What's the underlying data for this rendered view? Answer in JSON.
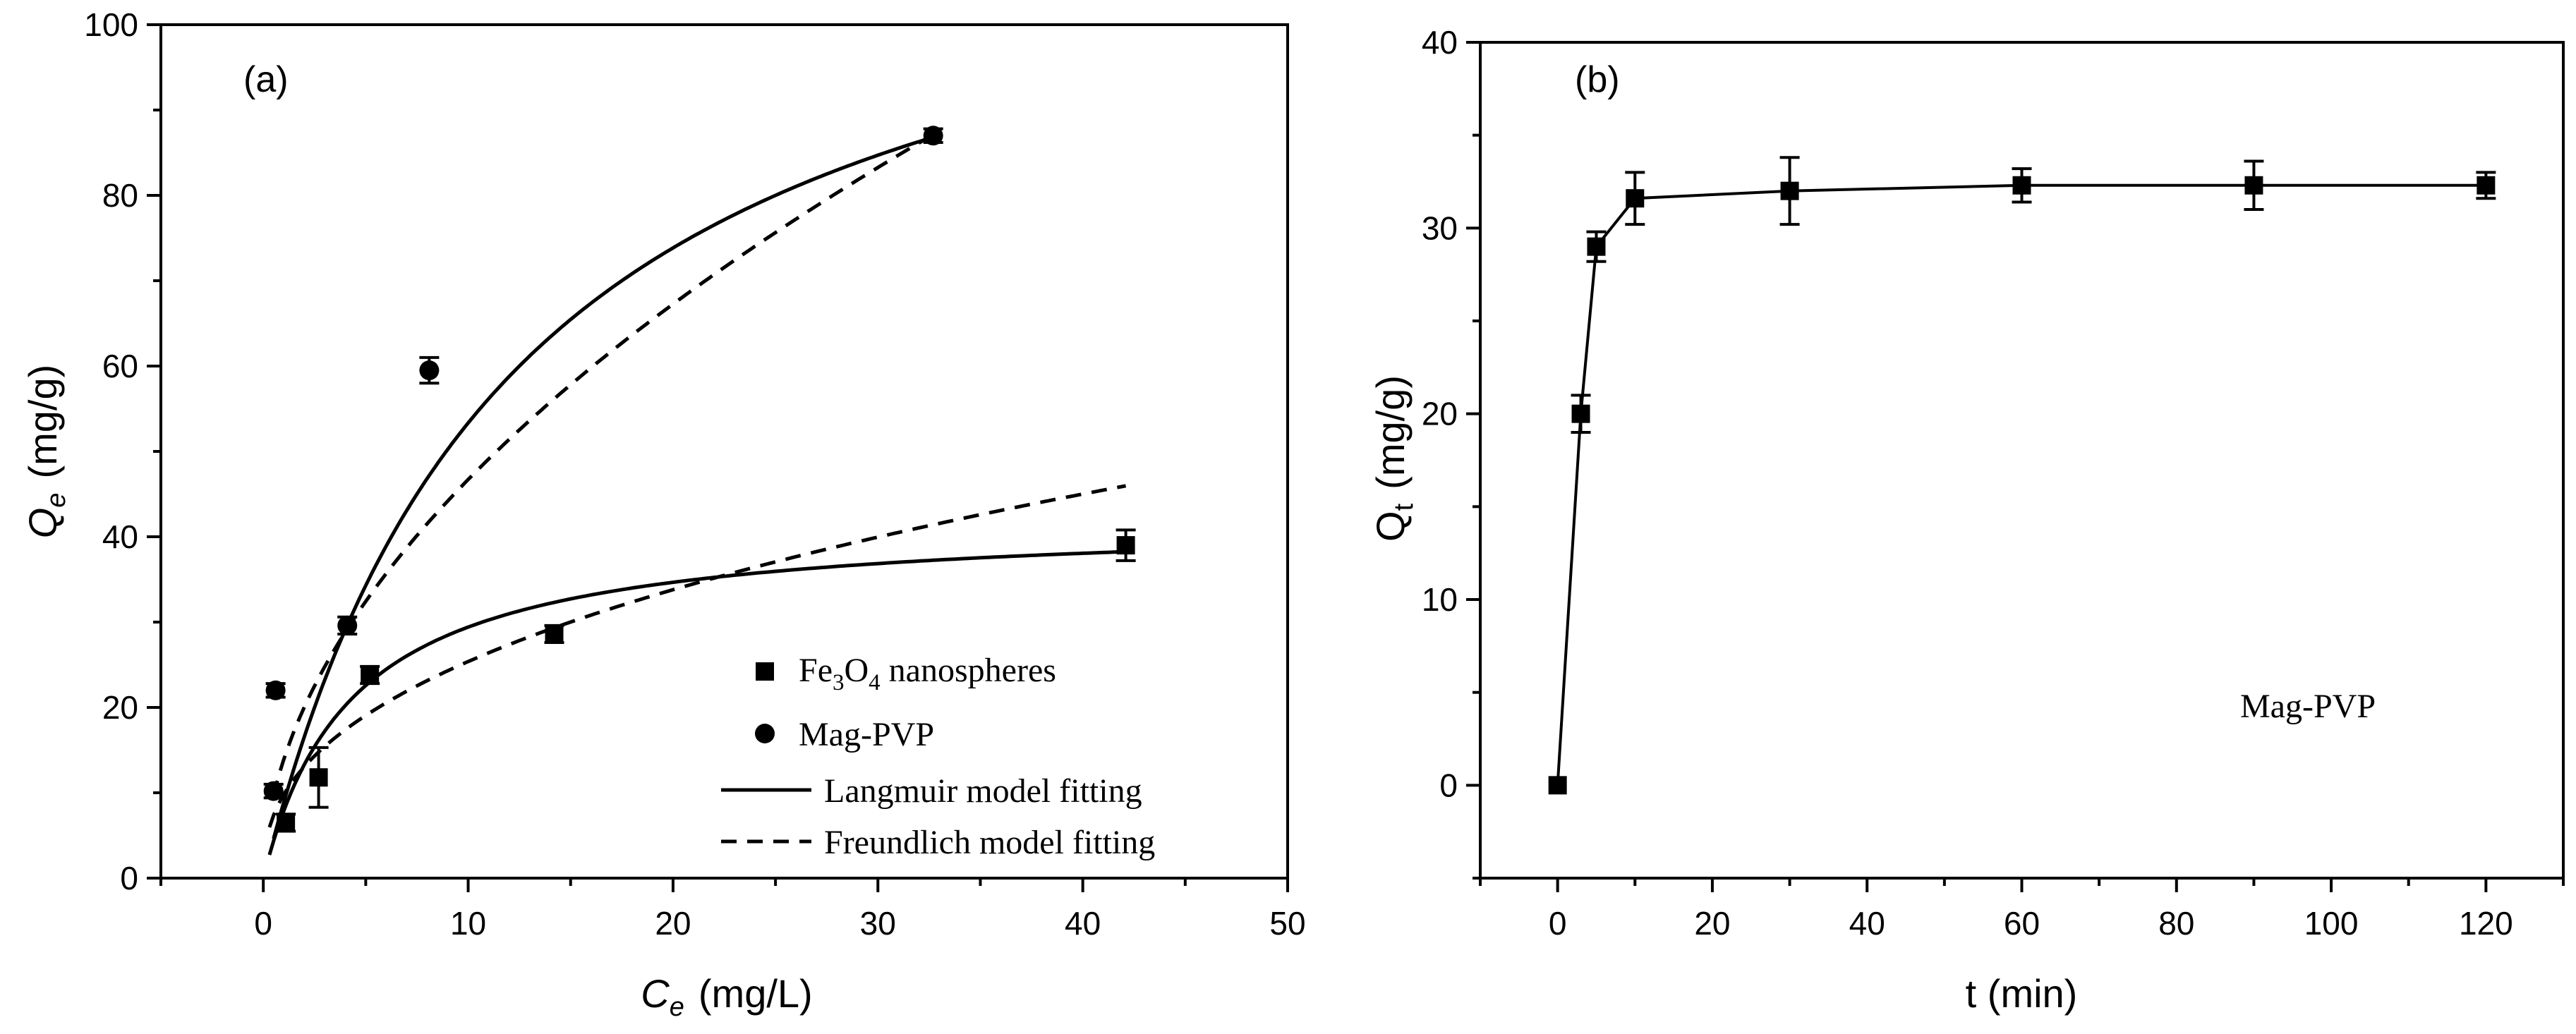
{
  "chart_data": [
    {
      "type": "scatter",
      "panel_label": "(a)",
      "xlabel": {
        "symbol": "C",
        "sub": "e",
        "unit": "(mg/L)"
      },
      "ylabel": {
        "symbol": "Q",
        "sub": "e",
        "unit": "(mg/g)"
      },
      "xlim": [
        -5,
        50
      ],
      "ylim": [
        0,
        100
      ],
      "xticks": [
        0,
        10,
        20,
        30,
        40,
        50
      ],
      "yticks": [
        0,
        20,
        40,
        60,
        80,
        100
      ],
      "xtick_labels": [
        "0",
        "10",
        "20",
        "30",
        "40",
        "50"
      ],
      "ytick_labels": [
        "0",
        "20",
        "40",
        "60",
        "80",
        "100"
      ],
      "legend_position": "bottom-right",
      "series": [
        {
          "name": "Fe3O4 nanospheres",
          "legend": {
            "parts": [
              "Fe",
              "3",
              "O",
              "4",
              " nanospheres"
            ]
          },
          "marker": "square",
          "points": [
            {
              "x": 1.1,
              "y": 6.5,
              "err": 1.0
            },
            {
              "x": 2.7,
              "y": 11.8,
              "err": 3.5
            },
            {
              "x": 5.2,
              "y": 23.8,
              "err": 1.0
            },
            {
              "x": 14.2,
              "y": 28.6,
              "err": 1.0
            },
            {
              "x": 42.1,
              "y": 39.0,
              "err": 1.8
            }
          ],
          "langmuir": {
            "qmax": 42.2,
            "KL": 0.23,
            "x_range": [
              0.3,
              42.1
            ]
          },
          "freundlich": {
            "KF": 9.8,
            "n": 2.42,
            "x_range": [
              0.3,
              42.1
            ]
          }
        },
        {
          "name": "Mag-PVP",
          "legend": {
            "text": "Mag-PVP"
          },
          "marker": "circle",
          "points": [
            {
              "x": 0.5,
              "y": 10.2,
              "err": 0.8
            },
            {
              "x": 0.6,
              "y": 22.0,
              "err": 0.8
            },
            {
              "x": 4.1,
              "y": 29.6,
              "err": 1.0
            },
            {
              "x": 8.1,
              "y": 59.5,
              "err": 1.5
            },
            {
              "x": 32.7,
              "y": 87.0,
              "err": 0.8
            }
          ],
          "langmuir": {
            "qmax": 120.0,
            "KL": 0.08,
            "x_range": [
              0.5,
              32.7
            ]
          },
          "freundlich": {
            "KF": 13.9,
            "n": 1.9,
            "x_range": [
              0.5,
              32.7
            ]
          }
        }
      ],
      "lines_legend": [
        {
          "name": "Langmuir model fitting",
          "style": "solid"
        },
        {
          "name": "Freundlich model fitting",
          "style": "dashed"
        }
      ]
    },
    {
      "type": "line",
      "panel_label": "(b)",
      "xlabel": {
        "text": "t (min)"
      },
      "ylabel": {
        "symbol": "Q",
        "sub": "t",
        "unit": "(mg/g)"
      },
      "xlim": [
        -10,
        130
      ],
      "ylim": [
        -5,
        40
      ],
      "xticks": [
        0,
        20,
        40,
        60,
        80,
        100,
        120
      ],
      "yticks": [
        0,
        10,
        20,
        30,
        40
      ],
      "xtick_labels": [
        "0",
        "20",
        "40",
        "60",
        "80",
        "100",
        "120"
      ],
      "ytick_labels": [
        "0",
        "10",
        "20",
        "30",
        "40"
      ],
      "annotation": "Mag-PVP",
      "series": [
        {
          "name": "Mag-PVP",
          "marker": "square",
          "points": [
            {
              "x": 0,
              "y": 0.0,
              "err": 0
            },
            {
              "x": 3,
              "y": 20.0,
              "err": 1.0
            },
            {
              "x": 5,
              "y": 29.0,
              "err": 0.8
            },
            {
              "x": 10,
              "y": 31.6,
              "err": 1.4
            },
            {
              "x": 30,
              "y": 32.0,
              "err": 1.8
            },
            {
              "x": 60,
              "y": 32.3,
              "err": 0.9
            },
            {
              "x": 90,
              "y": 32.3,
              "err": 1.3
            },
            {
              "x": 120,
              "y": 32.3,
              "err": 0.7
            }
          ]
        }
      ]
    }
  ]
}
